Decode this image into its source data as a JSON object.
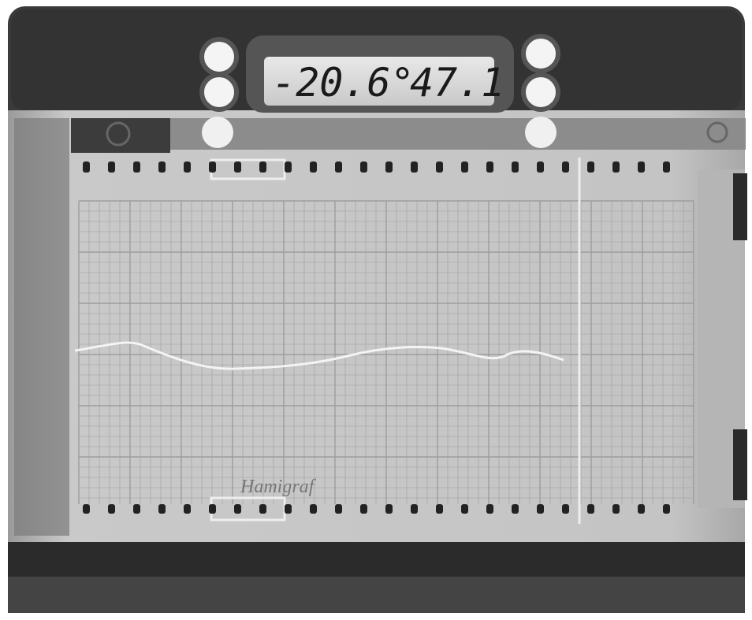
{
  "display": {
    "temperature": "-20.6°",
    "humidity": "47.1"
  },
  "paper": {
    "brand": "Hamigraf"
  }
}
